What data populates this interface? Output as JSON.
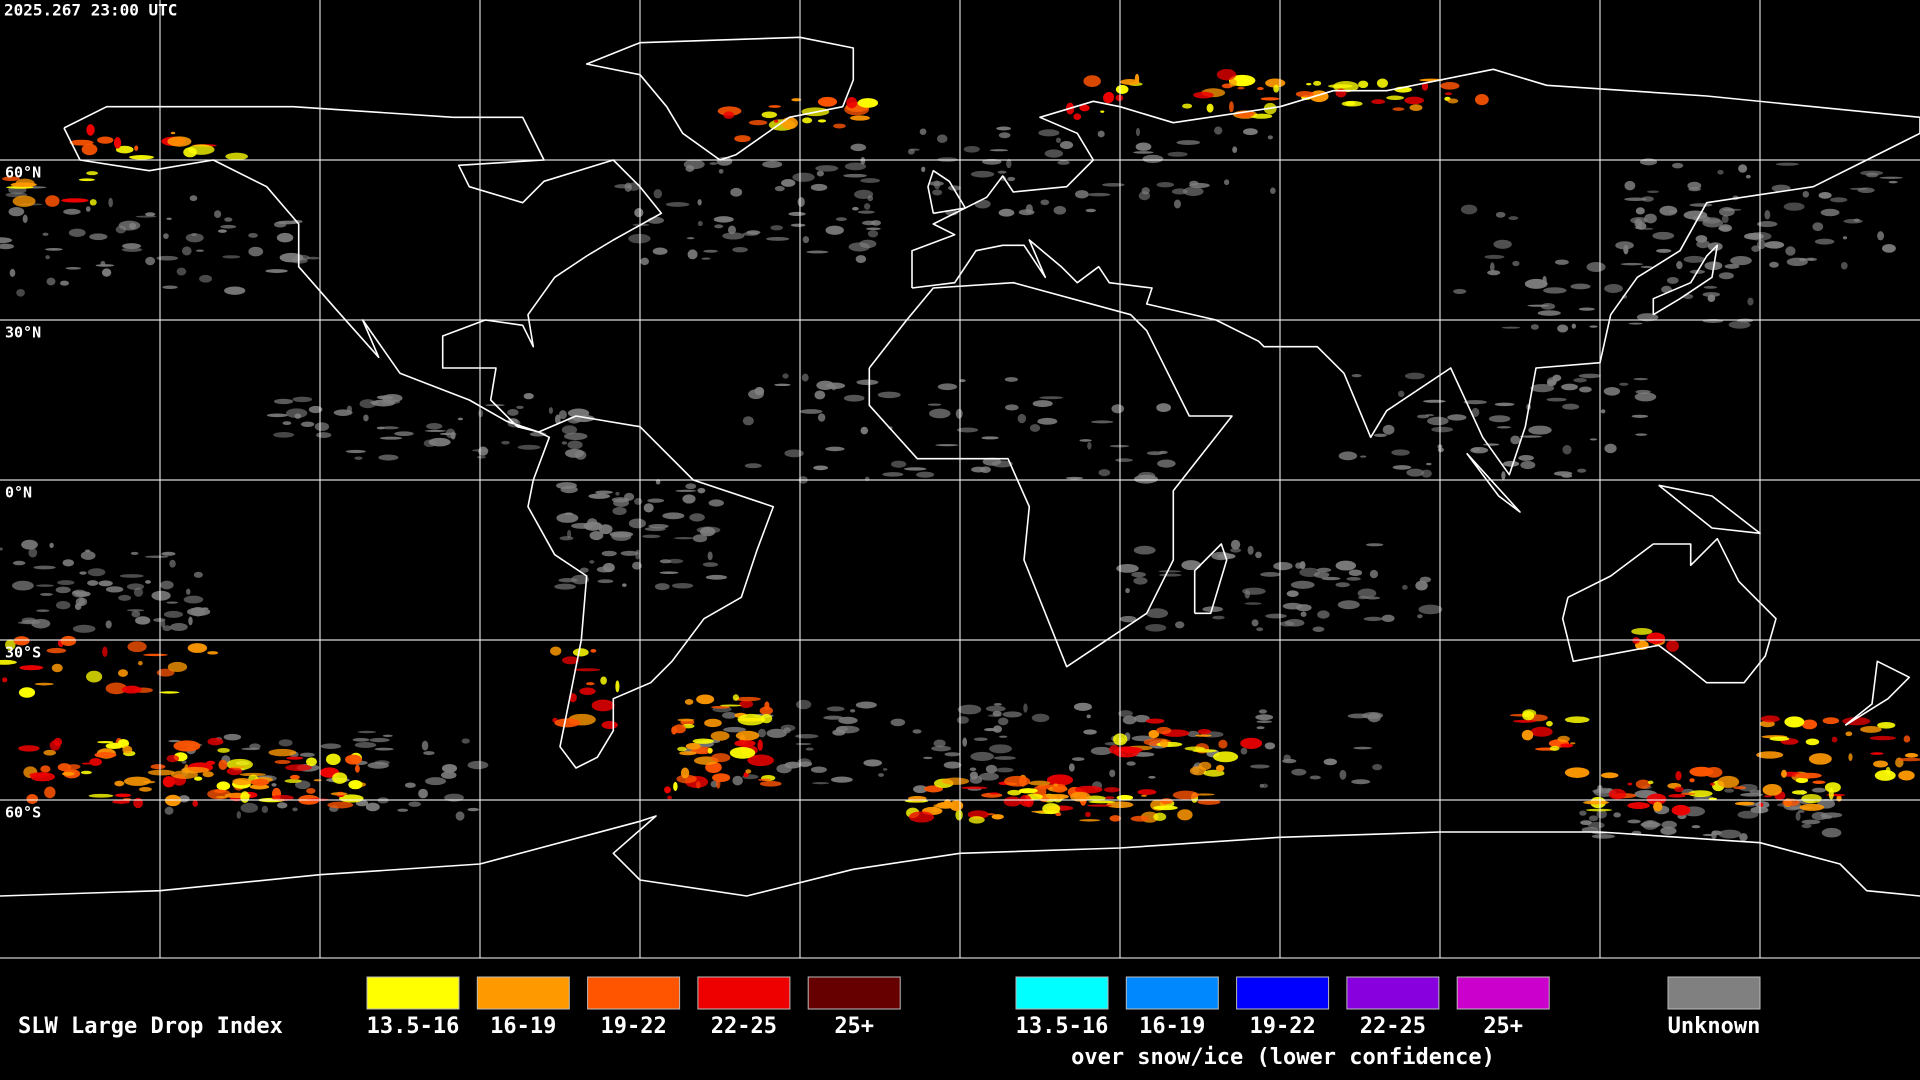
{
  "header": {
    "timestamp": "2025.267 23:00 UTC"
  },
  "map": {
    "latitude_labels": [
      "60°N",
      "30°N",
      "0°N",
      "30°S",
      "60°S"
    ]
  },
  "legend": {
    "title": "SLW Large Drop Index",
    "groups": [
      {
        "items": [
          {
            "label": "13.5-16",
            "color": "#ffff00"
          },
          {
            "label": "16-19",
            "color": "#ff9900"
          },
          {
            "label": "19-22",
            "color": "#ff5500"
          },
          {
            "label": "22-25",
            "color": "#ee0000"
          },
          {
            "label": "25+",
            "color": "#660000"
          }
        ]
      },
      {
        "items": [
          {
            "label": "13.5-16",
            "color": "#00ffff"
          },
          {
            "label": "16-19",
            "color": "#0088ff"
          },
          {
            "label": "19-22",
            "color": "#0000ff"
          },
          {
            "label": "22-25",
            "color": "#8800dd"
          },
          {
            "label": "25+",
            "color": "#cc00cc"
          }
        ],
        "caption": "over snow/ice (lower confidence)"
      },
      {
        "items": [
          {
            "label": "Unknown",
            "color": "#808080"
          }
        ]
      }
    ]
  }
}
